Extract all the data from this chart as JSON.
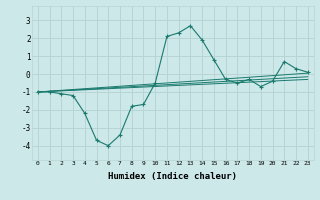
{
  "xlabel": "Humidex (Indice chaleur)",
  "bg_color": "#cce8e8",
  "grid_color": "#b8d4d4",
  "line_color": "#1a7a6e",
  "xlim": [
    -0.5,
    23.5
  ],
  "ylim": [
    -4.8,
    3.8
  ],
  "yticks": [
    -4,
    -3,
    -2,
    -1,
    0,
    1,
    2,
    3
  ],
  "xticks": [
    0,
    1,
    2,
    3,
    4,
    5,
    6,
    7,
    8,
    9,
    10,
    11,
    12,
    13,
    14,
    15,
    16,
    17,
    18,
    19,
    20,
    21,
    22,
    23
  ],
  "series": [
    {
      "x": [
        0,
        1,
        2,
        3,
        4,
        5,
        6,
        7,
        8,
        9,
        10,
        11,
        12,
        13,
        14,
        15,
        16,
        17,
        18,
        19,
        20,
        21,
        22,
        23
      ],
      "y": [
        -1.0,
        -1.0,
        -1.1,
        -1.2,
        -2.2,
        -3.7,
        -4.0,
        -3.4,
        -1.8,
        -1.7,
        -0.5,
        2.1,
        2.3,
        2.7,
        1.9,
        0.8,
        -0.3,
        -0.5,
        -0.3,
        -0.7,
        -0.4,
        0.7,
        0.3,
        0.1
      ],
      "marker": true
    },
    {
      "x": [
        0,
        23
      ],
      "y": [
        -1.0,
        -0.3
      ],
      "marker": false
    },
    {
      "x": [
        0,
        23
      ],
      "y": [
        -1.0,
        -0.15
      ],
      "marker": false
    },
    {
      "x": [
        0,
        23
      ],
      "y": [
        -1.0,
        0.05
      ],
      "marker": false
    }
  ]
}
